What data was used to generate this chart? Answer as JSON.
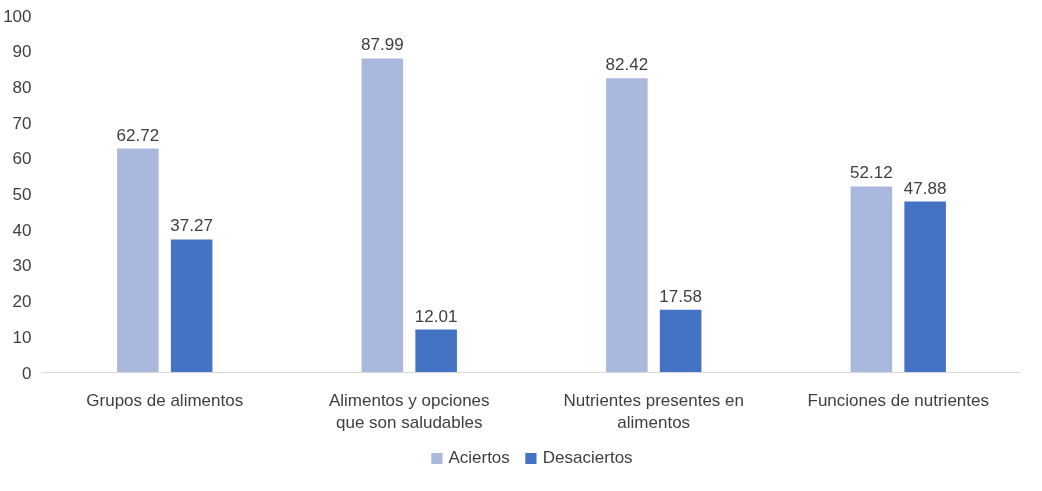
{
  "chart_data": {
    "type": "bar",
    "categories": [
      "Grupos de alimentos",
      "Alimentos y opciones que son saludables",
      "Nutrientes presentes en alimentos",
      "Funciones de nutrientes"
    ],
    "series": [
      {
        "name": "Aciertos",
        "color": "#a9b8dc",
        "values": [
          62.72,
          87.99,
          82.42,
          52.12
        ]
      },
      {
        "name": "Desaciertos",
        "color": "#4472c4",
        "values": [
          37.27,
          12.01,
          17.58,
          47.88
        ]
      }
    ],
    "ylim": [
      0,
      100
    ],
    "yticks": [
      0,
      10,
      20,
      30,
      40,
      50,
      60,
      70,
      80,
      90,
      100
    ],
    "grid": false,
    "legend": "bottom",
    "data_labels": true
  }
}
